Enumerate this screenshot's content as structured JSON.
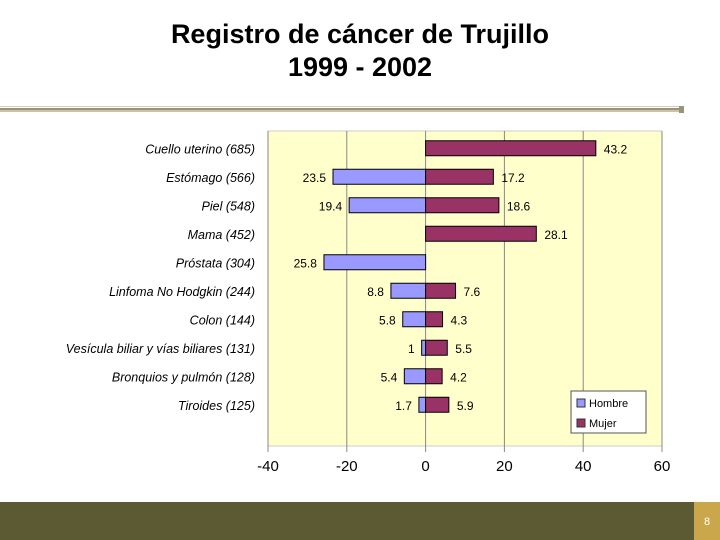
{
  "slide": {
    "title_line1": "Registro de cáncer de Trujillo",
    "title_line2": "1999 - 2002",
    "page_number": "8"
  },
  "colors": {
    "plot_background": "#ffffcc",
    "hombre": "#9999ff",
    "mujer": "#993366",
    "footer": "#5b5a33",
    "footer_accent": "#c9a74a"
  },
  "chart_data": {
    "type": "bar",
    "orientation": "horizontal",
    "categories": [
      "Cuello uterino (685)",
      "Estómago (566)",
      "Piel (548)",
      "Mama (452)",
      "Próstata (304)",
      "Linfoma No Hodgkin (244)",
      "Colon (144)",
      "Vesícula biliar y vías biliares (131)",
      "Bronquios y pulmón (128)",
      "Tiroides (125)"
    ],
    "series": [
      {
        "name": "Hombre",
        "values": [
          null,
          -23.5,
          -19.4,
          null,
          -25.8,
          -8.8,
          -5.8,
          -1,
          -5.4,
          -1.7
        ],
        "labels": [
          "",
          "23.5",
          "19.4",
          "",
          "25.8",
          "8.8",
          "5.8",
          "1",
          "5.4",
          "1.7"
        ]
      },
      {
        "name": "Mujer",
        "values": [
          43.2,
          17.2,
          18.6,
          28.1,
          null,
          7.6,
          4.3,
          5.5,
          4.2,
          5.9
        ],
        "labels": [
          "43.2",
          "17.2",
          "18.6",
          "28.1",
          "",
          "7.6",
          "4.3",
          "5.5",
          "4.2",
          "5.9"
        ]
      }
    ],
    "xlim": [
      -40,
      60
    ],
    "xticks": [
      "-40",
      "-20",
      "0",
      "20",
      "40",
      "60"
    ],
    "grid": true,
    "legend_position": "bottom-right"
  }
}
